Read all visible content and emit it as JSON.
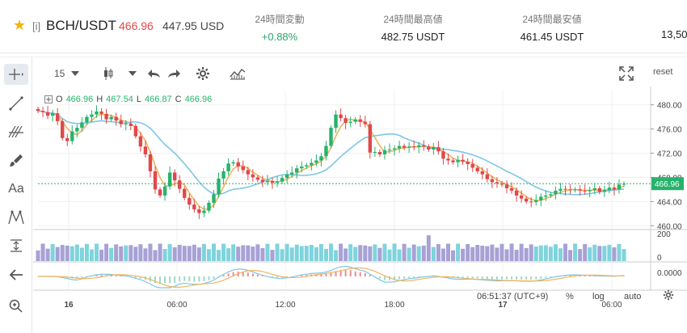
{
  "ticker": {
    "exchange_tag": "[i]",
    "symbol": "BCH/USDT",
    "price": "466.96",
    "price_usd": "447.95 USD",
    "stats": [
      {
        "label": "24時間変動",
        "value": "+0.88%"
      },
      {
        "label": "24時間最高値",
        "value": "482.75 USDT"
      },
      {
        "label": "24時間最安値",
        "value": "461.45 USDT"
      }
    ],
    "cutoff_value": "13,50"
  },
  "toolbar": {
    "interval": "15",
    "reset_label": "reset"
  },
  "ohlc": {
    "o_label": "O",
    "o": "466.96",
    "h_label": "H",
    "h": "467.54",
    "l_label": "L",
    "l": "466.87",
    "c_label": "C",
    "c": "466.96"
  },
  "bottom": {
    "time": "06:51:37 (UTC+9)",
    "percent_label": "%",
    "log_label": "log",
    "auto_label": "auto"
  },
  "colors": {
    "up": "#26b36b",
    "down": "#e0484a",
    "ma_fast": "#f2b45c",
    "ma_slow": "#7ec6e6",
    "vol_up": "#7fd3dc",
    "vol_down": "#a7a1d6"
  },
  "chart_data": {
    "type": "candlestick",
    "y_ticks": [
      "480.00",
      "476.00",
      "472.00",
      "468.00",
      "464.00",
      "460.00"
    ],
    "ylim": [
      459.5,
      482.5
    ],
    "x_ticks": [
      "16",
      "06:00",
      "12:00",
      "18:00",
      "17",
      "06:00"
    ],
    "last_price_label": "466.96",
    "volume_ticks": [
      "200",
      "0"
    ],
    "macd_tick": "0.0000",
    "closes": [
      479.0,
      478.8,
      478.2,
      478.6,
      477.3,
      474.5,
      474.0,
      475.6,
      476.2,
      477.1,
      478.0,
      478.4,
      478.9,
      478.5,
      477.6,
      478.0,
      477.4,
      476.8,
      476.9,
      476.5,
      474.8,
      473.1,
      471.8,
      469.0,
      466.0,
      465.0,
      466.5,
      468.8,
      467.5,
      466.1,
      464.6,
      463.5,
      462.7,
      462.1,
      462.5,
      463.8,
      465.2,
      467.8,
      469.0,
      470.3,
      470.5,
      469.8,
      469.2,
      468.5,
      468.0,
      467.6,
      467.2,
      467.4,
      467.1,
      467.3,
      467.9,
      468.5,
      468.8,
      469.5,
      469.8,
      470.0,
      470.4,
      470.8,
      471.5,
      473.2,
      476.2,
      478.4,
      477.8,
      477.0,
      477.2,
      477.6,
      477.2,
      476.8,
      472.1,
      472.2,
      471.8,
      472.5,
      472.6,
      472.8,
      473.2,
      472.9,
      473.1,
      473.0,
      473.3,
      473.1,
      472.6,
      473.0,
      472.3,
      471.1,
      470.8,
      470.5,
      470.9,
      470.6,
      470.2,
      469.6,
      469.0,
      468.5,
      467.7,
      467.2,
      467.0,
      466.8,
      466.2,
      465.8,
      465.0,
      464.5,
      464.0,
      463.9,
      464.2,
      464.8,
      465.0,
      465.2,
      465.8,
      466.1,
      466.0,
      465.9,
      466.0,
      465.8,
      465.7,
      465.9,
      466.2,
      465.6,
      465.9,
      466.3,
      466.0,
      466.8,
      466.96
    ]
  }
}
